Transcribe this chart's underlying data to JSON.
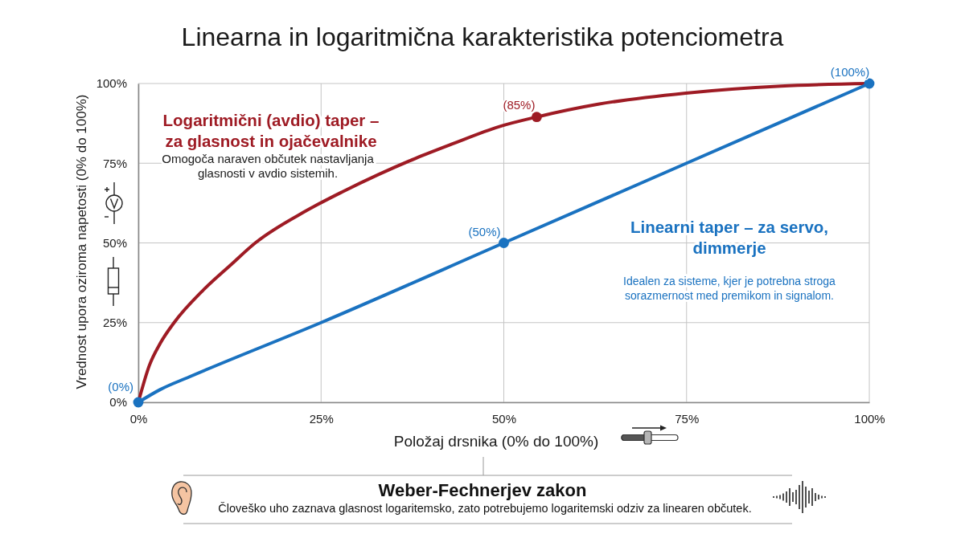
{
  "chart_data": {
    "type": "line",
    "title": "Linearna in logaritmična karakteristika potenciometra",
    "xlabel": "Položaj drsnika (0% do 100%)",
    "ylabel": "Vrednost upora oziroma napetosti (0% do 100%)",
    "xlim": [
      0,
      100
    ],
    "ylim": [
      0,
      100
    ],
    "xticks": [
      {
        "value": 0,
        "label": "0%"
      },
      {
        "value": 25,
        "label": "25%"
      },
      {
        "value": 50,
        "label": "50%"
      },
      {
        "value": 75,
        "label": "75%"
      },
      {
        "value": 100,
        "label": "100%"
      }
    ],
    "yticks": [
      {
        "value": 0,
        "label": "0%"
      },
      {
        "value": 25,
        "label": "25%"
      },
      {
        "value": 50,
        "label": "50%"
      },
      {
        "value": 75,
        "label": "75%"
      },
      {
        "value": 100,
        "label": "100%"
      }
    ],
    "grid": true,
    "series": [
      {
        "type": "line",
        "name": "Logaritmični (avdio) taper – za glasnost in ojačevalnike",
        "color": "#9e1b24",
        "x": [
          0,
          1.5,
          3,
          4.9,
          8.8,
          12.6,
          16,
          22.9,
          27.9,
          32.9,
          37.9,
          42.9,
          49.4,
          54.5,
          62.9,
          74.9,
          87.9,
          100
        ],
        "values": [
          0,
          11.5,
          18.5,
          25,
          35,
          43,
          50,
          60,
          66,
          71.5,
          76.5,
          81,
          86.5,
          89.5,
          93.5,
          97,
          99.2,
          100
        ]
      },
      {
        "type": "line",
        "name": "Linearni taper – za servo, dimmerje",
        "color": "#1a72c0",
        "x": [
          0,
          3,
          7,
          25,
          50,
          75,
          100
        ],
        "values": [
          0,
          4,
          8,
          25,
          50,
          75,
          100
        ]
      },
      {
        "type": "scatter",
        "color": "#9e1b24",
        "marker": "circle",
        "x": [
          54.5
        ],
        "values": [
          89.5
        ]
      },
      {
        "type": "scatter",
        "color": "#1a72c0",
        "marker": "circle",
        "x": [
          0,
          50,
          100
        ],
        "values": [
          0,
          50,
          100
        ],
        "value_labels": [
          "(0%)",
          "(50%)",
          "(100%)"
        ]
      }
    ],
    "annotations": [
      "Omogoča naraven občutek nastavljanja glasnosti v avdio sistemih.",
      "Idealen za sisteme, kjer je potrebna stroga sorazmernost med premikom in signalom.",
      "Weber-Fechnerjev zakon",
      "Človeško uho zaznava glasnost logaritemsko, zato potrebujemo logaritemski odziv za linearen občutek.",
      {
        "text": "(85%)",
        "x": 54.5,
        "y": 89.5
      }
    ]
  }
}
